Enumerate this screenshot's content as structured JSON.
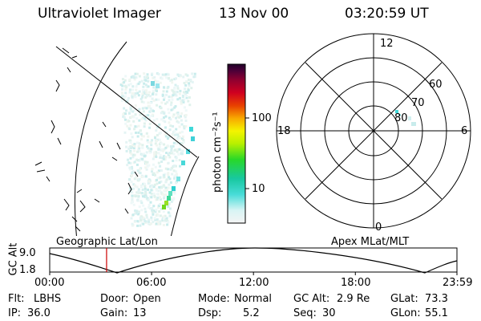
{
  "header": {
    "instrument": "Ultraviolet Imager",
    "date": "13 Nov 00",
    "time": "03:20:59 UT"
  },
  "colorbar": {
    "label": "photon cm⁻²s⁻¹",
    "ticks": [
      "100",
      "10"
    ]
  },
  "polar_plot": {
    "mlt_labels": {
      "top": "12",
      "left": "18",
      "right": "6",
      "bottom": "0"
    },
    "mlat_labels": [
      "60",
      "70",
      "80"
    ]
  },
  "map_labels": {
    "left": "Geographic Lat/Lon",
    "right": "Apex MLat/MLT"
  },
  "timeline": {
    "ylabel": "GC Alt",
    "y_ticks": [
      "9.0",
      "1.8"
    ],
    "x_ticks": [
      "00:00",
      "06:00",
      "12:00",
      "18:00",
      "23:59"
    ],
    "marker_time": "03:20:59",
    "colors": {
      "curve": "#000000",
      "marker": "#cc0000"
    }
  },
  "status": {
    "row1": [
      {
        "label": "Flt:",
        "value": "LBHS"
      },
      {
        "label": "Door:",
        "value": "Open"
      },
      {
        "label": "Mode:",
        "value": "Normal"
      },
      {
        "label": "GC Alt:",
        "value": "2.9 Re"
      },
      {
        "label": "GLat:",
        "value": "73.3"
      }
    ],
    "row2": [
      {
        "label": "IP:",
        "value": "36.0"
      },
      {
        "label": "Gain:",
        "value": "13"
      },
      {
        "label": "Dsp:",
        "value": "5.2"
      },
      {
        "label": "Seq:",
        "value": "30"
      },
      {
        "label": "GLon:",
        "value": "55.1"
      }
    ]
  }
}
